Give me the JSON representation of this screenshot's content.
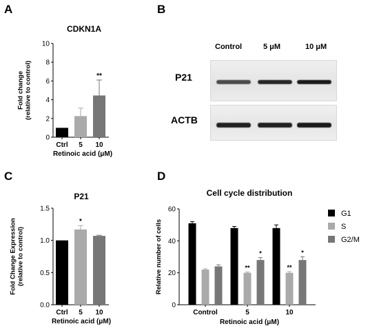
{
  "panels": {
    "A": {
      "letter": "A"
    },
    "B": {
      "letter": "B"
    },
    "C": {
      "letter": "C"
    },
    "D": {
      "letter": "D"
    }
  },
  "western_blot": {
    "lanes": [
      "Control",
      "5 μM",
      "10 μM"
    ],
    "rows": [
      {
        "label": "P21",
        "band_intensity": [
          0.55,
          0.85,
          0.95
        ]
      },
      {
        "label": "ACTB",
        "band_intensity": [
          0.9,
          0.9,
          0.95
        ]
      }
    ]
  },
  "chart_data": [
    {
      "id": "A",
      "type": "bar",
      "title": "CDKN1A",
      "ylabel": "Fold change\n(relative to control)",
      "xlabel": "Retinoic acid (μM)",
      "categories": [
        "Ctrl",
        "5",
        "10"
      ],
      "values": [
        1.0,
        2.25,
        4.45
      ],
      "errors": [
        0,
        0.85,
        1.65
      ],
      "significance": [
        "",
        "",
        "**"
      ],
      "colors": [
        "#000000",
        "#aaaaaa",
        "#777777"
      ],
      "ylim": [
        0,
        10
      ],
      "yticks": [
        0,
        2,
        4,
        6,
        8,
        10
      ]
    },
    {
      "id": "C",
      "type": "bar",
      "title": "P21",
      "ylabel": "Fold Change Expression\n(relative to control)",
      "xlabel": "Retinoic acid (μM)",
      "categories": [
        "Ctrl",
        "5",
        "10"
      ],
      "values": [
        1.0,
        1.17,
        1.07
      ],
      "errors": [
        0,
        0.06,
        0.01
      ],
      "significance": [
        "",
        "*",
        ""
      ],
      "colors": [
        "#000000",
        "#aaaaaa",
        "#777777"
      ],
      "ylim": [
        0,
        1.5
      ],
      "yticks": [
        "0.0",
        "0.5",
        "1.0",
        "1.5"
      ]
    },
    {
      "id": "D",
      "type": "bar",
      "title": "Cell cycle distribution",
      "ylabel": "Relative number of cells",
      "xlabel": "Retinoic acid (μM)",
      "categories": [
        "Control",
        "5",
        "10"
      ],
      "series": [
        {
          "name": "G1",
          "color": "#000000",
          "values": [
            51,
            48,
            48
          ],
          "errors": [
            1,
            1,
            2
          ],
          "significance": [
            "",
            "",
            ""
          ]
        },
        {
          "name": "S",
          "color": "#aaaaaa",
          "values": [
            22,
            20,
            20
          ],
          "errors": [
            0.5,
            0.5,
            0.7
          ],
          "significance": [
            "",
            "**",
            "**"
          ]
        },
        {
          "name": "G2/M",
          "color": "#777777",
          "values": [
            24,
            28,
            28
          ],
          "errors": [
            1,
            1.5,
            2
          ],
          "significance": [
            "",
            "*",
            "*"
          ]
        }
      ],
      "ylim": [
        0,
        60
      ],
      "yticks": [
        0,
        20,
        40,
        60
      ],
      "legend_position": "right"
    }
  ]
}
